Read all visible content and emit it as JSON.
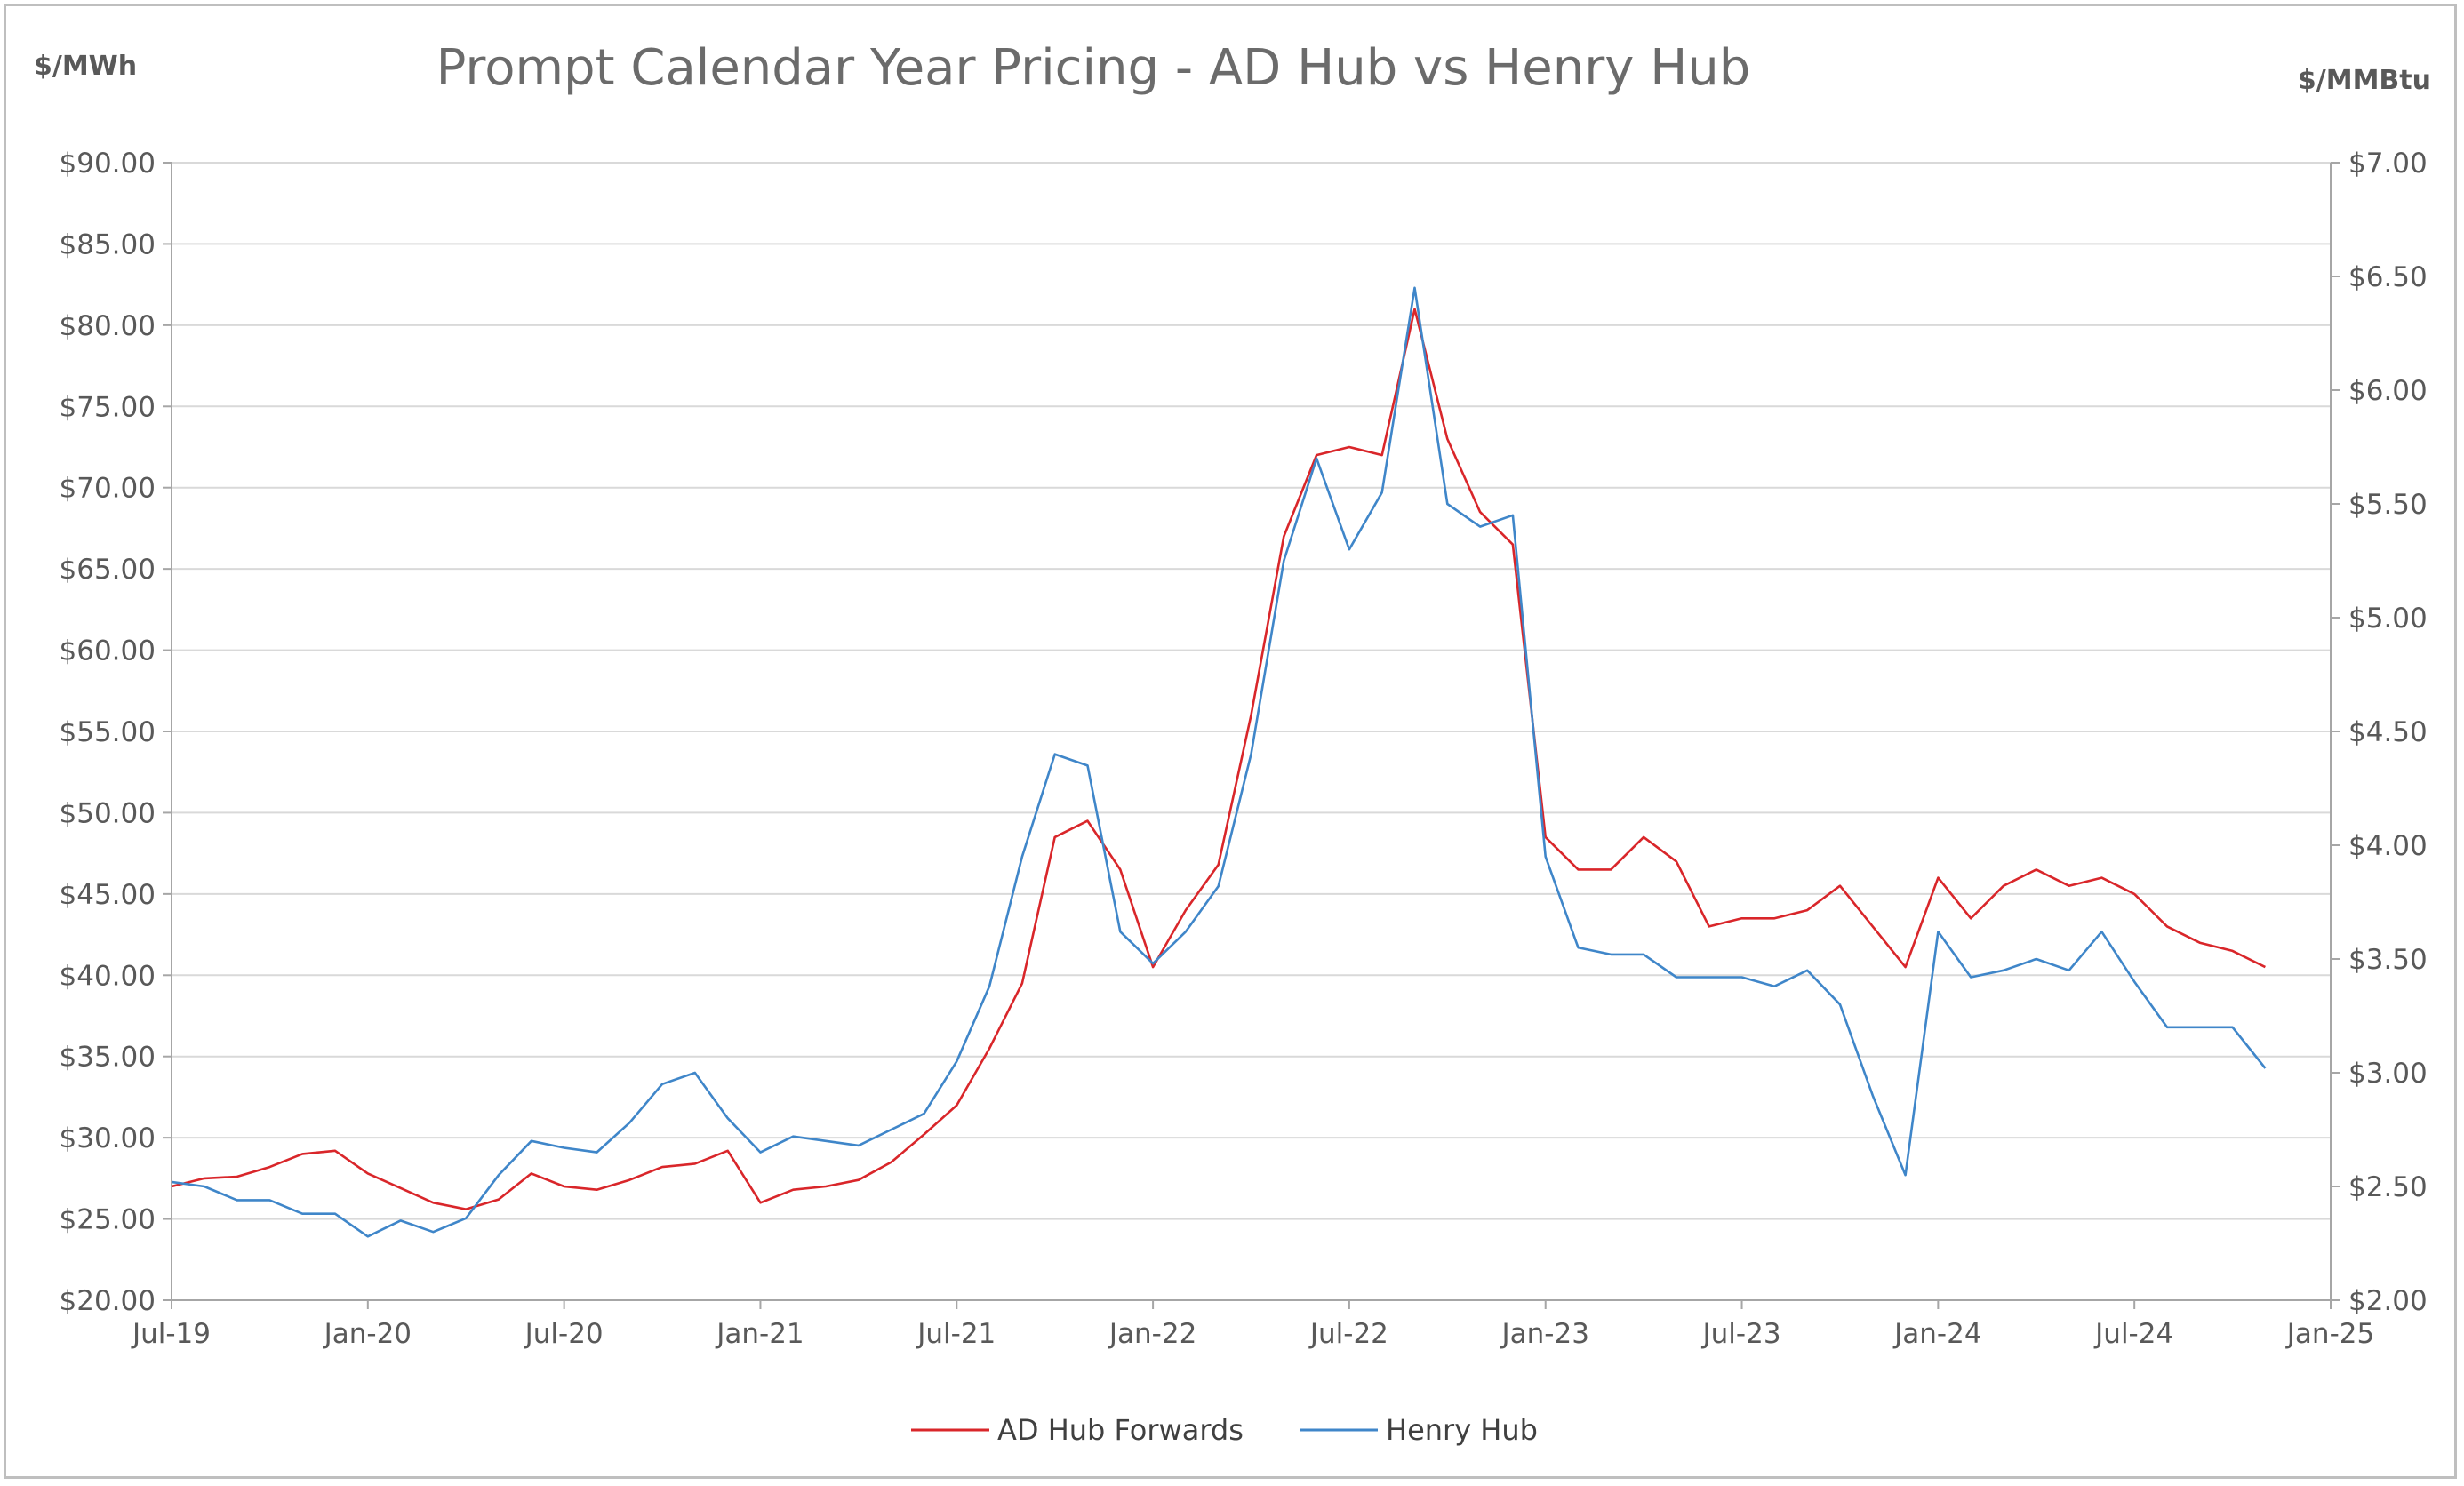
{
  "chart_data": {
    "type": "line",
    "title": "Prompt Calendar Year Pricing - AD Hub vs Henry Hub",
    "ylabel_left": "$/MWh",
    "ylabel_right": "$/MMBtu",
    "x_ticks": [
      "Jul-19",
      "Jan-20",
      "Jul-20",
      "Jan-21",
      "Jul-21",
      "Jan-22",
      "Jul-22",
      "Jan-23",
      "Jul-23",
      "Jan-24",
      "Jul-24",
      "Jan-25"
    ],
    "x_range": [
      "2019-07",
      "2025-01"
    ],
    "y_left_ticks": [
      "$20.00",
      "$25.00",
      "$30.00",
      "$35.00",
      "$40.00",
      "$45.00",
      "$50.00",
      "$55.00",
      "$60.00",
      "$65.00",
      "$70.00",
      "$75.00",
      "$80.00",
      "$85.00",
      "$90.00"
    ],
    "y_left_range": [
      20,
      90
    ],
    "y_right_ticks": [
      "$2.00",
      "$2.50",
      "$3.00",
      "$3.50",
      "$4.00",
      "$4.50",
      "$5.00",
      "$5.50",
      "$6.00",
      "$6.50",
      "$7.00"
    ],
    "y_right_range": [
      2,
      7
    ],
    "grid": "horizontal",
    "legend_position": "bottom",
    "colors": {
      "ad_hub": "#d9262a",
      "henry_hub": "#3f86c9",
      "grid": "#d9d9d9",
      "axis": "#a6a6a6"
    },
    "series": [
      {
        "name": "AD Hub Forwards",
        "axis": "left",
        "points": [
          [
            "2019-07",
            27.0
          ],
          [
            "2019-08",
            27.5
          ],
          [
            "2019-09",
            27.6
          ],
          [
            "2019-10",
            28.2
          ],
          [
            "2019-11",
            29.0
          ],
          [
            "2019-12",
            29.2
          ],
          [
            "2020-01",
            27.8
          ],
          [
            "2020-02",
            26.9
          ],
          [
            "2020-03",
            26.0
          ],
          [
            "2020-04",
            25.6
          ],
          [
            "2020-05",
            26.2
          ],
          [
            "2020-06",
            27.8
          ],
          [
            "2020-07",
            27.0
          ],
          [
            "2020-08",
            26.8
          ],
          [
            "2020-09",
            27.4
          ],
          [
            "2020-10",
            28.2
          ],
          [
            "2020-11",
            28.4
          ],
          [
            "2020-12",
            29.2
          ],
          [
            "2021-01",
            26.0
          ],
          [
            "2021-02",
            26.8
          ],
          [
            "2021-03",
            27.0
          ],
          [
            "2021-04",
            27.4
          ],
          [
            "2021-05",
            28.5
          ],
          [
            "2021-06",
            30.2
          ],
          [
            "2021-07",
            32.0
          ],
          [
            "2021-08",
            35.5
          ],
          [
            "2021-09",
            39.5
          ],
          [
            "2021-10",
            48.5
          ],
          [
            "2021-11",
            49.5
          ],
          [
            "2021-12",
            46.5
          ],
          [
            "2022-01",
            40.5
          ],
          [
            "2022-02",
            44.0
          ],
          [
            "2022-03",
            46.8
          ],
          [
            "2022-04",
            56.0
          ],
          [
            "2022-05",
            67.0
          ],
          [
            "2022-06",
            72.0
          ],
          [
            "2022-07",
            72.5
          ],
          [
            "2022-08",
            72.0
          ],
          [
            "2022-09",
            81.0
          ],
          [
            "2022-10",
            73.0
          ],
          [
            "2022-11",
            68.5
          ],
          [
            "2022-12",
            66.5
          ],
          [
            "2023-01",
            48.5
          ],
          [
            "2023-02",
            46.5
          ],
          [
            "2023-03",
            46.5
          ],
          [
            "2023-04",
            48.5
          ],
          [
            "2023-05",
            47.0
          ],
          [
            "2023-06",
            43.0
          ],
          [
            "2023-07",
            43.5
          ],
          [
            "2023-08",
            43.5
          ],
          [
            "2023-09",
            44.0
          ],
          [
            "2023-10",
            45.5
          ],
          [
            "2023-11",
            43.0
          ],
          [
            "2023-12",
            40.5
          ],
          [
            "2024-01",
            46.0
          ],
          [
            "2024-02",
            43.5
          ],
          [
            "2024-03",
            45.5
          ],
          [
            "2024-04",
            46.5
          ],
          [
            "2024-05",
            45.5
          ],
          [
            "2024-06",
            46.0
          ],
          [
            "2024-07",
            45.0
          ],
          [
            "2024-08",
            43.0
          ],
          [
            "2024-09",
            42.0
          ],
          [
            "2024-10",
            41.5
          ],
          [
            "2024-11",
            40.5
          ]
        ]
      },
      {
        "name": "Henry Hub",
        "axis": "right",
        "points": [
          [
            "2019-07",
            2.52
          ],
          [
            "2019-08",
            2.5
          ],
          [
            "2019-09",
            2.44
          ],
          [
            "2019-10",
            2.44
          ],
          [
            "2019-11",
            2.38
          ],
          [
            "2019-12",
            2.38
          ],
          [
            "2020-01",
            2.28
          ],
          [
            "2020-02",
            2.35
          ],
          [
            "2020-03",
            2.3
          ],
          [
            "2020-04",
            2.36
          ],
          [
            "2020-05",
            2.55
          ],
          [
            "2020-06",
            2.7
          ],
          [
            "2020-07",
            2.67
          ],
          [
            "2020-08",
            2.65
          ],
          [
            "2020-09",
            2.78
          ],
          [
            "2020-10",
            2.95
          ],
          [
            "2020-11",
            3.0
          ],
          [
            "2020-12",
            2.8
          ],
          [
            "2021-01",
            2.65
          ],
          [
            "2021-02",
            2.72
          ],
          [
            "2021-03",
            2.7
          ],
          [
            "2021-04",
            2.68
          ],
          [
            "2021-05",
            2.75
          ],
          [
            "2021-06",
            2.82
          ],
          [
            "2021-07",
            3.05
          ],
          [
            "2021-08",
            3.38
          ],
          [
            "2021-09",
            3.95
          ],
          [
            "2021-10",
            4.4
          ],
          [
            "2021-11",
            4.35
          ],
          [
            "2021-12",
            3.62
          ],
          [
            "2022-01",
            3.48
          ],
          [
            "2022-02",
            3.62
          ],
          [
            "2022-03",
            3.82
          ],
          [
            "2022-04",
            4.4
          ],
          [
            "2022-05",
            5.25
          ],
          [
            "2022-06",
            5.7
          ],
          [
            "2022-07",
            5.3
          ],
          [
            "2022-08",
            5.55
          ],
          [
            "2022-09",
            6.45
          ],
          [
            "2022-10",
            5.5
          ],
          [
            "2022-11",
            5.4
          ],
          [
            "2022-12",
            5.45
          ],
          [
            "2023-01",
            3.95
          ],
          [
            "2023-02",
            3.55
          ],
          [
            "2023-03",
            3.52
          ],
          [
            "2023-04",
            3.52
          ],
          [
            "2023-05",
            3.42
          ],
          [
            "2023-06",
            3.42
          ],
          [
            "2023-07",
            3.42
          ],
          [
            "2023-08",
            3.38
          ],
          [
            "2023-09",
            3.45
          ],
          [
            "2023-10",
            3.3
          ],
          [
            "2023-11",
            2.9
          ],
          [
            "2023-12",
            2.55
          ],
          [
            "2024-01",
            3.62
          ],
          [
            "2024-02",
            3.42
          ],
          [
            "2024-03",
            3.45
          ],
          [
            "2024-04",
            3.5
          ],
          [
            "2024-05",
            3.45
          ],
          [
            "2024-06",
            3.62
          ],
          [
            "2024-07",
            3.4
          ],
          [
            "2024-08",
            3.2
          ],
          [
            "2024-09",
            3.2
          ],
          [
            "2024-10",
            3.2
          ],
          [
            "2024-11",
            3.02
          ]
        ]
      }
    ]
  }
}
